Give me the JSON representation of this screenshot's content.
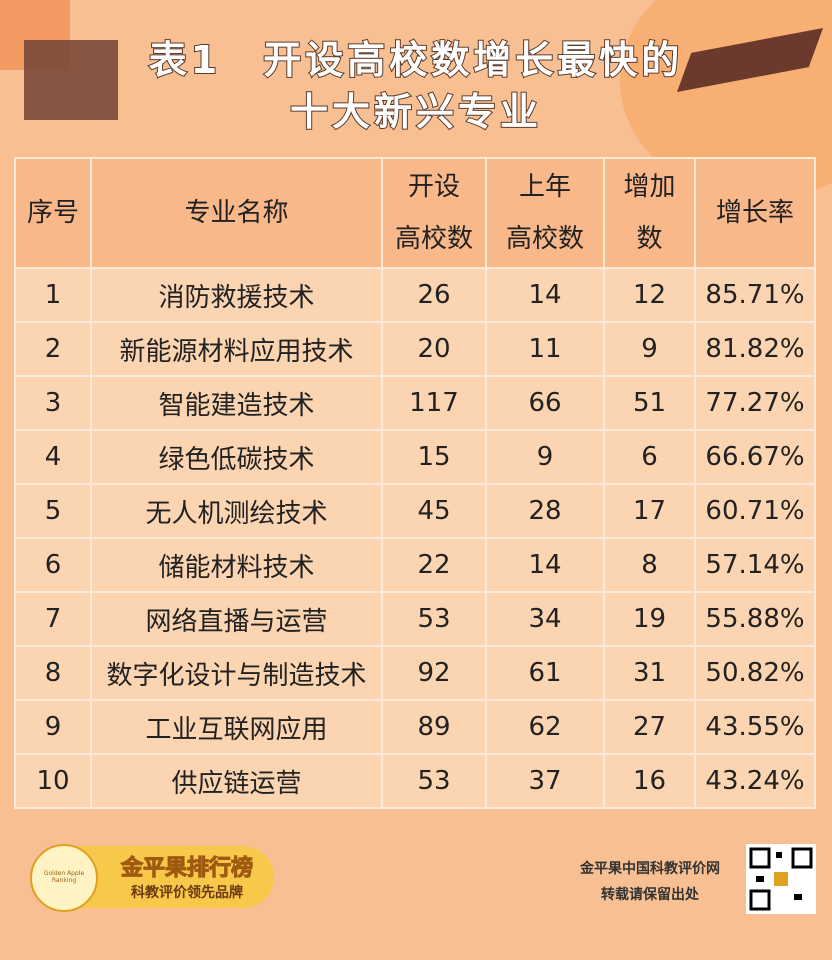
{
  "header": {
    "title": [
      "表1　开设高校数增长最快的",
      "十大新兴专业"
    ]
  },
  "table": {
    "headers": [
      [
        "序号"
      ],
      [
        "专业名称"
      ],
      [
        "开设",
        "高校数"
      ],
      [
        "上年",
        "高校数"
      ],
      [
        "增加",
        "数"
      ],
      [
        "增长率"
      ]
    ],
    "rows": [
      [
        "1",
        "消防救援技术",
        "26",
        "14",
        "12",
        "85.71%"
      ],
      [
        "2",
        "新能源材料应用技术",
        "20",
        "11",
        "9",
        "81.82%"
      ],
      [
        "3",
        "智能建造技术",
        "117",
        "66",
        "51",
        "77.27%"
      ],
      [
        "4",
        "绿色低碳技术",
        "15",
        "9",
        "6",
        "66.67%"
      ],
      [
        "5",
        "无人机测绘技术",
        "45",
        "28",
        "17",
        "60.71%"
      ],
      [
        "6",
        "储能材料技术",
        "22",
        "14",
        "8",
        "57.14%"
      ],
      [
        "7",
        "网络直播与运营",
        "53",
        "34",
        "19",
        "55.88%"
      ],
      [
        "8",
        "数字化设计与制造技术",
        "92",
        "61",
        "31",
        "50.82%"
      ],
      [
        "9",
        "工业互联网应用",
        "89",
        "62",
        "27",
        "43.55%"
      ],
      [
        "10",
        "供应链运营",
        "53",
        "37",
        "16",
        "43.24%"
      ]
    ]
  },
  "footer": {
    "logo": {
      "name": "金平果排行榜",
      "slogan": "科教评价领先品牌",
      "badge": "Golden Apple Ranking"
    },
    "source": [
      "金平果中国科教评价网",
      "转载请保留出处"
    ]
  }
}
